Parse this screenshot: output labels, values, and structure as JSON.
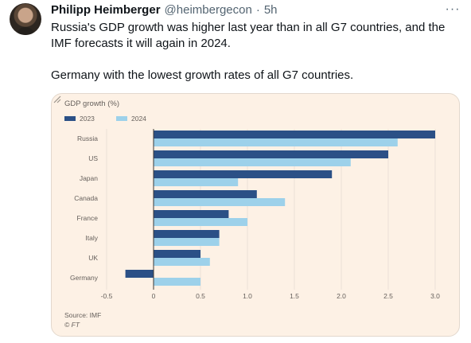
{
  "author": {
    "name": "Philipp Heimberger",
    "handle": "@heimbergecon",
    "separator": "·",
    "time": "5h"
  },
  "more_icon": "more-horizontal-icon",
  "tweet": {
    "line1": "Russia's GDP growth was higher last year than in all G7 countries, and the IMF forecasts it will again in 2024.",
    "line2": "Germany with the lowest growth rates of all G7 countries."
  },
  "colors": {
    "series_2023": "#2b5086",
    "series_2024": "#9dd1ea",
    "card_background": "#fdf1e5",
    "grid": "#e7ddd3"
  },
  "chart_data": {
    "type": "bar",
    "orientation": "horizontal",
    "title": "GDP growth (%)",
    "categories": [
      "Russia",
      "US",
      "Japan",
      "Canada",
      "France",
      "Italy",
      "UK",
      "Germany"
    ],
    "series": [
      {
        "name": "2023",
        "values": [
          3.0,
          2.5,
          1.9,
          1.1,
          0.8,
          0.7,
          0.5,
          -0.3
        ]
      },
      {
        "name": "2024",
        "values": [
          2.6,
          2.1,
          0.9,
          1.4,
          1.0,
          0.7,
          0.6,
          0.5
        ]
      }
    ],
    "x_ticks": [
      -0.5,
      0,
      0.5,
      1.0,
      1.5,
      2.0,
      2.5,
      3.0
    ],
    "x_tick_labels": [
      "-0.5",
      "0",
      "0.5",
      "1.0",
      "1.5",
      "2.0",
      "2.5",
      "3.0"
    ],
    "xlim": [
      -0.5,
      3.0
    ],
    "grid": true,
    "legend": "top-left",
    "source": "Source: IMF",
    "credit": "© FT"
  },
  "expand_icon": "expand-icon"
}
